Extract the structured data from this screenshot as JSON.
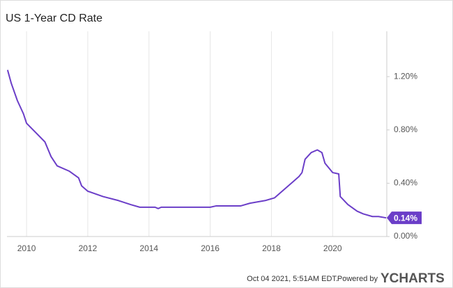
{
  "chart_data": {
    "type": "line",
    "title": "US 1-Year CD Rate",
    "x": [
      2009.38,
      2009.5,
      2009.7,
      2009.9,
      2010.0,
      2010.3,
      2010.6,
      2010.8,
      2011.0,
      2011.4,
      2011.7,
      2011.8,
      2012.0,
      2012.5,
      2013.0,
      2013.4,
      2013.7,
      2014.2,
      2014.3,
      2014.4,
      2016.0,
      2016.2,
      2017.0,
      2017.3,
      2017.8,
      2018.1,
      2018.4,
      2018.7,
      2018.9,
      2019.0,
      2019.1,
      2019.3,
      2019.5,
      2019.65,
      2019.75,
      2020.0,
      2020.2,
      2020.25,
      2020.5,
      2020.8,
      2021.0,
      2021.3,
      2021.5,
      2021.75
    ],
    "series": [
      {
        "name": "US 1-Year CD Rate",
        "color": "#6b3ec8",
        "values": [
          1.25,
          1.15,
          1.02,
          0.92,
          0.85,
          0.78,
          0.71,
          0.6,
          0.53,
          0.49,
          0.44,
          0.38,
          0.34,
          0.3,
          0.27,
          0.24,
          0.22,
          0.22,
          0.21,
          0.22,
          0.22,
          0.23,
          0.23,
          0.25,
          0.27,
          0.29,
          0.35,
          0.41,
          0.45,
          0.48,
          0.58,
          0.63,
          0.65,
          0.63,
          0.55,
          0.48,
          0.47,
          0.3,
          0.24,
          0.19,
          0.17,
          0.15,
          0.15,
          0.14
        ]
      }
    ],
    "current_value": {
      "value": 0.14,
      "label": "0.14%"
    },
    "xlim": [
      2009.36,
      2021.77
    ],
    "xticks": [
      2010,
      2012,
      2014,
      2016,
      2018,
      2020
    ],
    "ylim": [
      0,
      1.54
    ],
    "yticks": [
      {
        "value": 0,
        "label": "0.00%"
      },
      {
        "value": 0.4,
        "label": "0.40%"
      },
      {
        "value": 0.8,
        "label": "0.80%"
      },
      {
        "value": 1.2,
        "label": "1.20%"
      }
    ],
    "grid": true
  },
  "footer": {
    "timestamp": "Oct 04 2021, 5:51AM EDT.",
    "powered_by": "Powered by",
    "brand": "YCHARTS"
  }
}
